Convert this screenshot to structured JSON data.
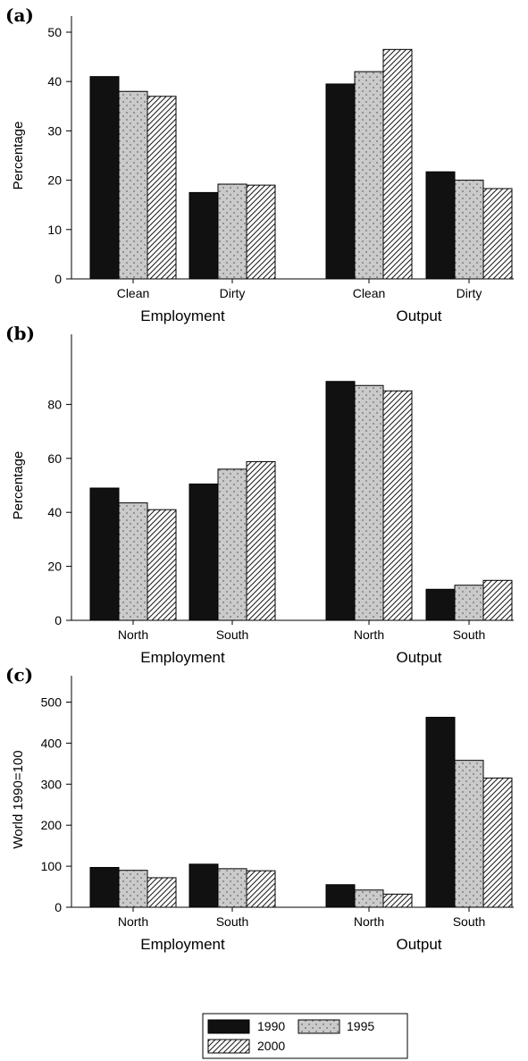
{
  "legend": {
    "series": [
      "1990",
      "1995",
      "2000"
    ]
  },
  "series_colors": {
    "1990": "#111111",
    "1995": "#c8c8c8",
    "2000": "#ffffff"
  },
  "chart_data": [
    {
      "type": "bar",
      "panel_label": "(a)",
      "ylabel": "Percentage",
      "ylim": [
        0,
        50
      ],
      "yticks": [
        0,
        10,
        20,
        30,
        40,
        50
      ],
      "groups": [
        {
          "name": "Employment",
          "categories": [
            "Clean",
            "Dirty"
          ]
        },
        {
          "name": "Output",
          "categories": [
            "Clean",
            "Dirty"
          ]
        }
      ],
      "series": [
        {
          "name": "1990",
          "values": [
            41,
            17.5,
            39.5,
            21.7
          ]
        },
        {
          "name": "1995",
          "values": [
            38,
            19.2,
            42,
            20
          ]
        },
        {
          "name": "2000",
          "values": [
            37,
            19,
            46.5,
            18.3
          ]
        }
      ]
    },
    {
      "type": "bar",
      "panel_label": "(b)",
      "ylabel": "Percentage",
      "ylim": [
        0,
        100
      ],
      "yticks": [
        0,
        20,
        40,
        60,
        80
      ],
      "groups": [
        {
          "name": "Employment",
          "categories": [
            "North",
            "South"
          ]
        },
        {
          "name": "Output",
          "categories": [
            "North",
            "South"
          ]
        }
      ],
      "series": [
        {
          "name": "1990",
          "values": [
            49,
            50.5,
            88.5,
            11.5
          ]
        },
        {
          "name": "1995",
          "values": [
            43.5,
            56,
            87,
            13
          ]
        },
        {
          "name": "2000",
          "values": [
            41,
            58.8,
            85,
            14.8
          ]
        }
      ]
    },
    {
      "type": "bar",
      "panel_label": "(c)",
      "ylabel": "World 1990=100",
      "ylim": [
        0,
        525
      ],
      "yticks": [
        0,
        100,
        200,
        300,
        400,
        500
      ],
      "groups": [
        {
          "name": "Employment",
          "categories": [
            "North",
            "South"
          ]
        },
        {
          "name": "Output",
          "categories": [
            "North",
            "South"
          ]
        }
      ],
      "series": [
        {
          "name": "1990",
          "values": [
            97,
            105,
            55,
            463
          ]
        },
        {
          "name": "1995",
          "values": [
            90,
            94,
            42,
            358
          ]
        },
        {
          "name": "2000",
          "values": [
            72,
            89,
            32,
            315
          ]
        }
      ]
    }
  ]
}
